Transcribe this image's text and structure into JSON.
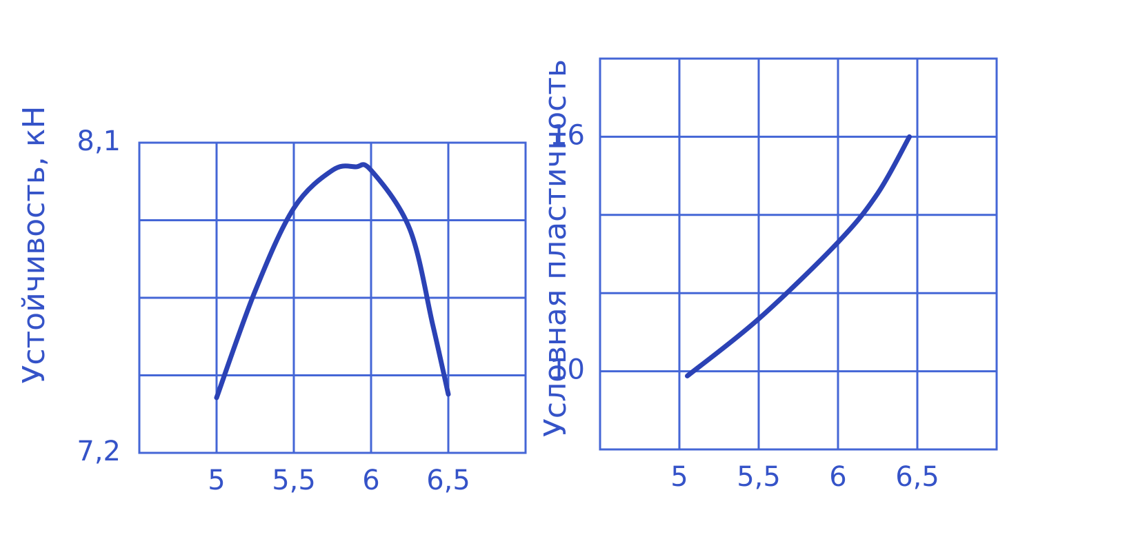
{
  "chart_data": [
    {
      "type": "line",
      "y_label": "Устойчивость, кН",
      "color": "#2b42b5",
      "x": [
        5.0,
        5.25,
        5.5,
        5.75,
        5.9,
        6.0,
        6.25,
        6.4,
        6.5
      ],
      "values": [
        7.36,
        7.67,
        7.91,
        8.02,
        8.03,
        8.02,
        7.85,
        7.57,
        7.37
      ],
      "xlim": [
        4.5,
        7.0
      ],
      "ylim": [
        7.2,
        8.1
      ],
      "xticks": [
        5,
        {
          "value": 5.5,
          "label": "5,5"
        },
        6,
        {
          "value": 6.5,
          "label": "6,5"
        }
      ],
      "yticks": [
        {
          "value": 7.2,
          "label": "7,2"
        },
        {
          "value": 8.1,
          "label": "8,1"
        }
      ],
      "grid": true
    },
    {
      "type": "line",
      "y_label": "Условная пластичность",
      "color": "#2b42b5",
      "x": [
        5.05,
        5.5,
        6.0,
        6.25,
        6.45
      ],
      "values": [
        9.88,
        11.34,
        13.3,
        14.55,
        16.0
      ],
      "xlim": [
        4.5,
        7.0
      ],
      "ylim": [
        8,
        18
      ],
      "xticks": [
        5,
        {
          "value": 5.5,
          "label": "5,5"
        },
        6,
        {
          "value": 6.5,
          "label": "6,5"
        }
      ],
      "yticks": [
        10,
        16
      ],
      "grid": true
    }
  ]
}
